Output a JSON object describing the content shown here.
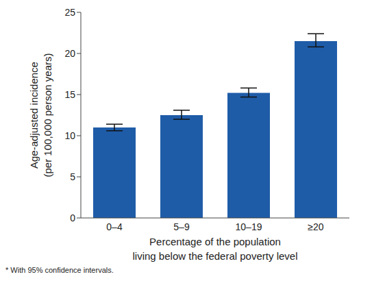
{
  "chart_data": {
    "type": "bar",
    "categories": [
      "0–4",
      "5–9",
      "10–19",
      "≥20"
    ],
    "values": [
      11.0,
      12.5,
      15.2,
      21.5
    ],
    "errors": [
      [
        0.4,
        0.4
      ],
      [
        0.5,
        0.6
      ],
      [
        0.5,
        0.6
      ],
      [
        0.7,
        0.9
      ]
    ],
    "color": "#1f5ca8",
    "ylim": [
      0,
      25
    ],
    "yticks": [
      0,
      5,
      10,
      15,
      20,
      25
    ],
    "grid": false,
    "ylabel": [
      "Age-adjusted incidence",
      "(per 100,000 person years)"
    ],
    "xlabel": [
      "Percentage of the population",
      "living below the federal poverty level"
    ],
    "annotations": [
      "* With 95% confidence intervals."
    ]
  }
}
